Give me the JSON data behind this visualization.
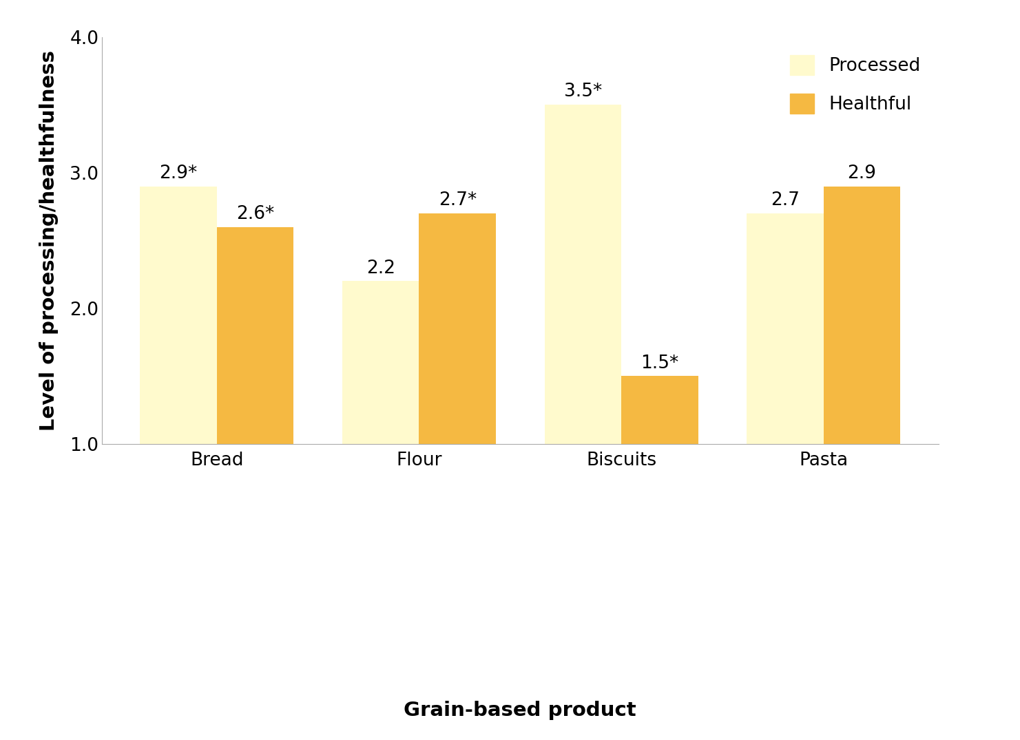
{
  "categories": [
    "Bread",
    "Flour",
    "Biscuits",
    "Pasta"
  ],
  "processed_values": [
    2.9,
    2.2,
    3.5,
    2.7
  ],
  "healthful_values": [
    2.6,
    2.7,
    1.5,
    2.9
  ],
  "processed_labels": [
    "2.9*",
    "2.2",
    "3.5*",
    "2.7"
  ],
  "healthful_labels": [
    "2.6*",
    "2.7*",
    "1.5*",
    "2.9"
  ],
  "processed_color": "#FFFACD",
  "healthful_color": "#F5B942",
  "ylim": [
    1.0,
    4.0
  ],
  "yticks": [
    1.0,
    2.0,
    3.0,
    4.0
  ],
  "ylabel": "Level of processing/healthfulness",
  "xlabel": "Grain-based product",
  "legend_labels": [
    "Processed",
    "Healthful"
  ],
  "bar_width": 0.38,
  "label_fontsize": 19,
  "tick_fontsize": 19,
  "axis_label_fontsize": 21,
  "legend_fontsize": 19,
  "background_color": "#ffffff"
}
